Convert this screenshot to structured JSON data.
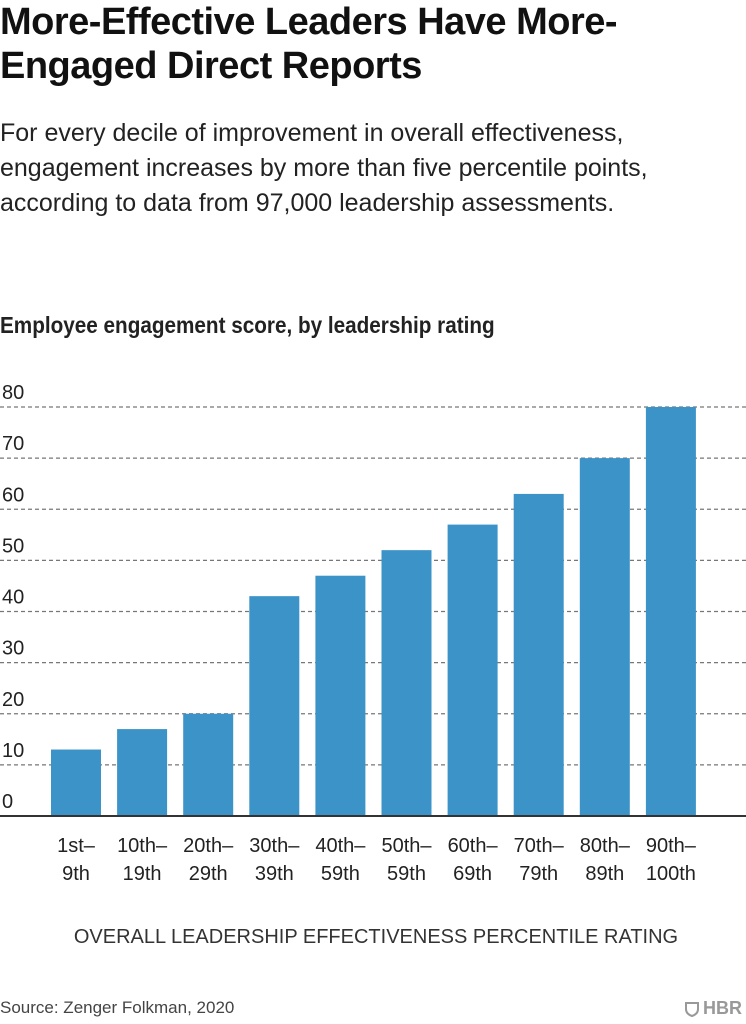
{
  "header": {
    "title": "More-Effective Leaders Have More-Engaged Direct Reports",
    "subtitle": "For every decile of improvement in overall effectiveness, engagement increases by more than five percentile points, according to data from 97,000 leadership assessments."
  },
  "chart_data": {
    "type": "bar",
    "title": "Employee engagement score, by leadership rating",
    "xlabel": "OVERALL LEADERSHIP EFFECTIVENESS PERCENTILE RATING",
    "ylabel": "",
    "categories": [
      [
        "1st–",
        "9th"
      ],
      [
        "10th–",
        "19th"
      ],
      [
        "20th–",
        "29th"
      ],
      [
        "30th–",
        "39th"
      ],
      [
        "40th–",
        "59th"
      ],
      [
        "50th–",
        "59th"
      ],
      [
        "60th–",
        "69th"
      ],
      [
        "70th–",
        "79th"
      ],
      [
        "80th–",
        "89th"
      ],
      [
        "90th–",
        "100th"
      ]
    ],
    "values": [
      13,
      17,
      20,
      43,
      47,
      52,
      57,
      63,
      70,
      80
    ],
    "ylim": [
      0,
      80
    ],
    "yticks": [
      0,
      10,
      20,
      30,
      40,
      50,
      60,
      70,
      80
    ],
    "grid": true,
    "bar_color": "#3b93c8"
  },
  "footer": {
    "source": "Source: Zenger Folkman, 2020",
    "logo": "HBR"
  }
}
